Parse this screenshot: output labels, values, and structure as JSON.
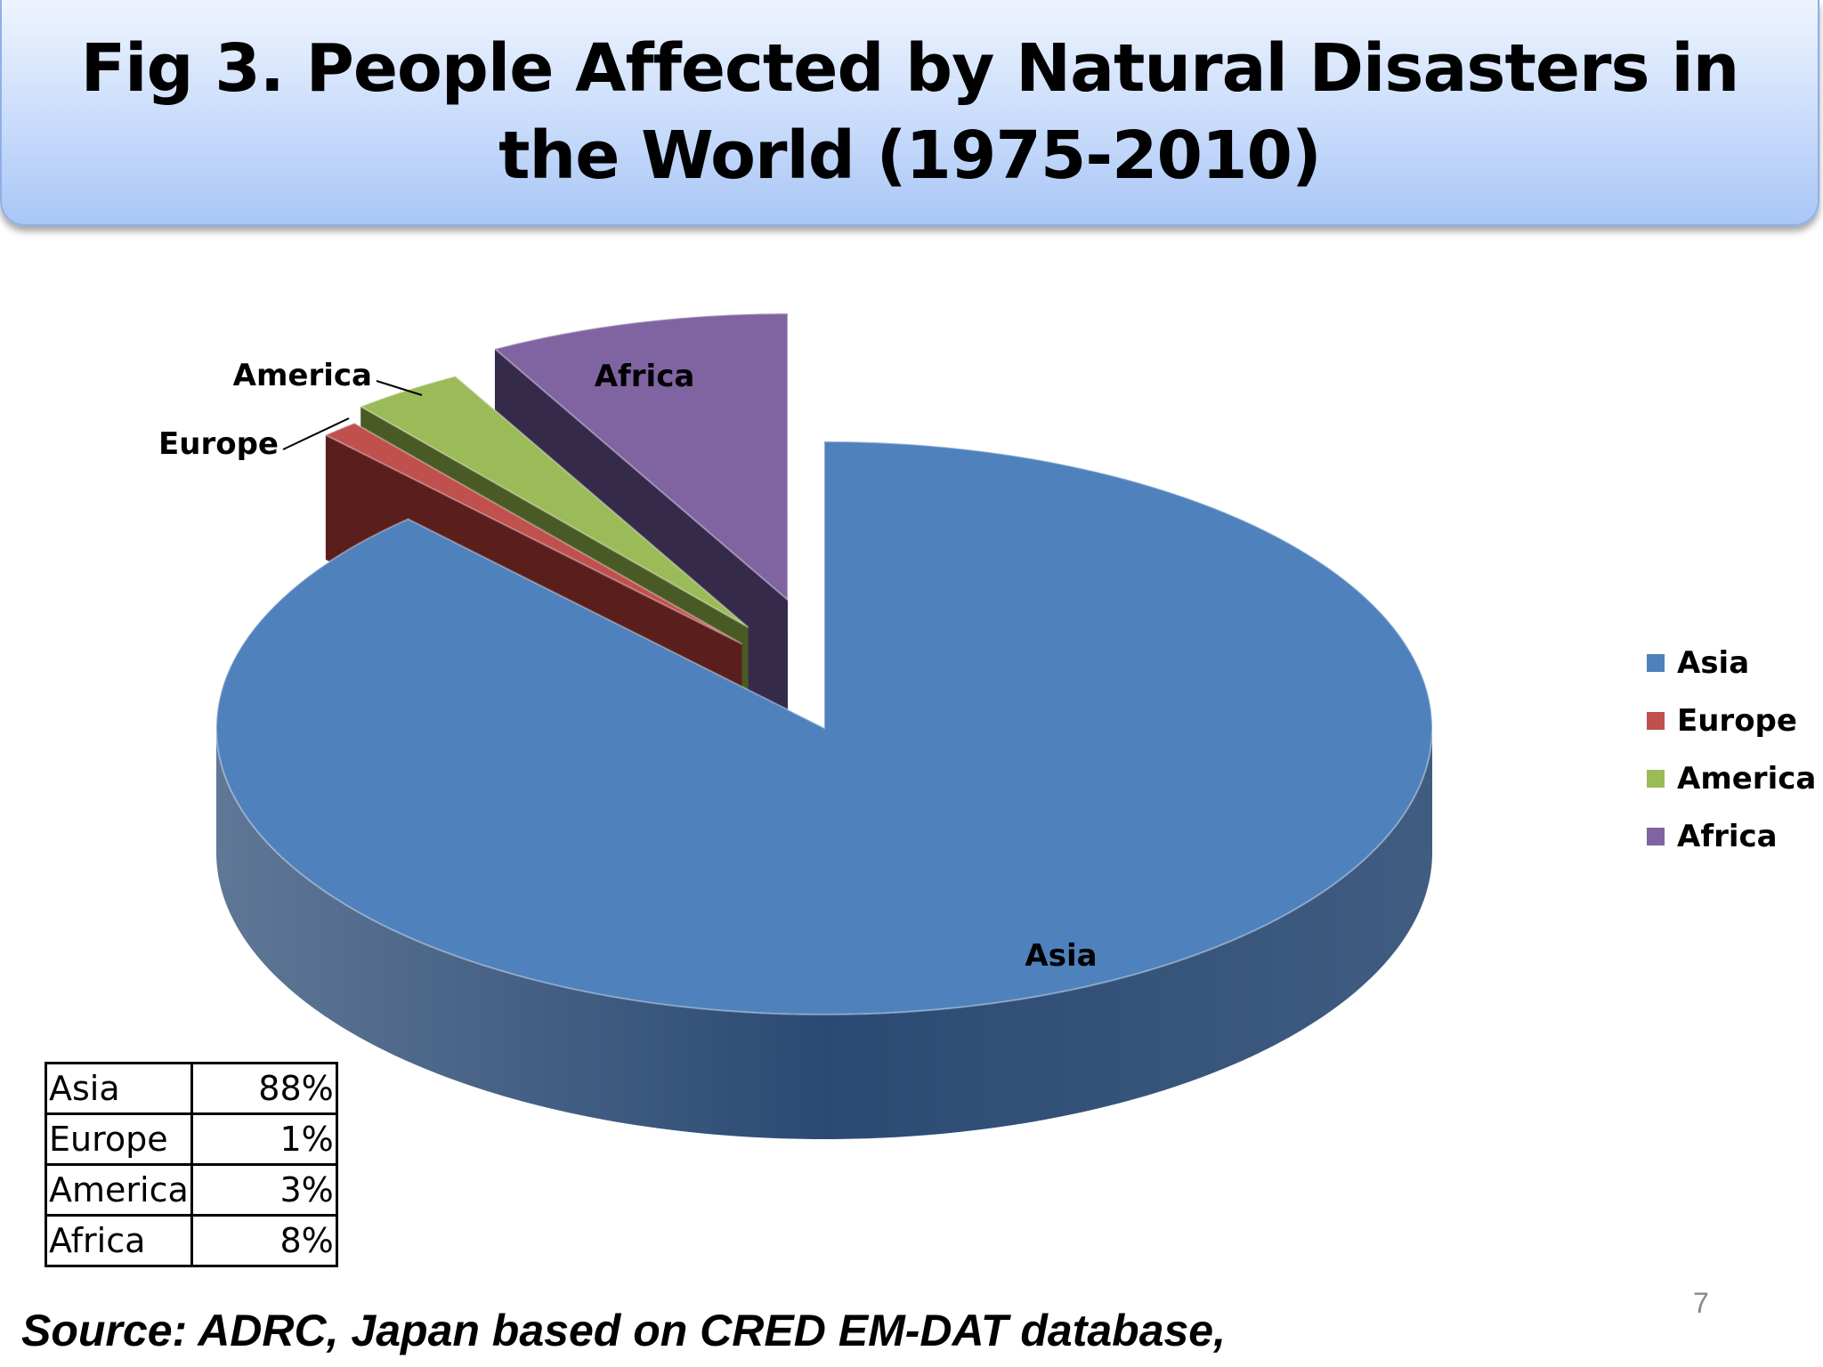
{
  "slide": {
    "title": "Fig 3. People Affected by Natural Disasters in the World (1975-2010)",
    "source": "Source: ADRC, Japan based on CRED EM-DAT database,",
    "page_number": "7"
  },
  "chart_data": {
    "type": "pie",
    "style": "3d exploded",
    "title": "Fig 3. People Affected by Natural Disasters in the World (1975-2010)",
    "categories": [
      "Asia",
      "Europe",
      "America",
      "Africa"
    ],
    "values": [
      88,
      1,
      3,
      8
    ],
    "unit": "%",
    "colors": [
      "#4F81BD",
      "#C0504D",
      "#9BBB59",
      "#8064A2"
    ],
    "side_colors": [
      "#2b4a73",
      "#5a1f1d",
      "#4a5a24",
      "#352a4a"
    ],
    "legend_position": "right"
  },
  "table": {
    "rows": [
      {
        "region": "Asia",
        "percent": "88%"
      },
      {
        "region": "Europe",
        "percent": "1%"
      },
      {
        "region": "America",
        "percent": "3%"
      },
      {
        "region": "Africa",
        "percent": "8%"
      }
    ]
  }
}
